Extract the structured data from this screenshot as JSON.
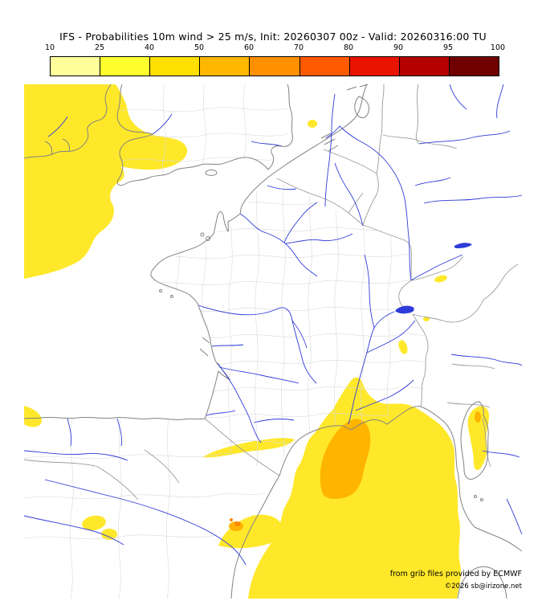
{
  "title": "IFS - Probabilities 10m wind > 25 m/s, Init: 20260307 00z - Valid: 20260316:00 TU",
  "colorbar": {
    "tick_labels": [
      "10",
      "25",
      "40",
      "50",
      "60",
      "70",
      "80",
      "90",
      "95",
      "100"
    ],
    "segment_colors": [
      "#ffff9c",
      "#ffff30",
      "#ffdf00",
      "#ffb800",
      "#ff9000",
      "#ff5a00",
      "#e81400",
      "#b40000",
      "#700000"
    ]
  },
  "map": {
    "colors": {
      "background": "#ffffff",
      "coastline": "#828282",
      "border": "#9c9c9c",
      "department": "#d9d9d9",
      "river": "#2e3bd8",
      "prob_10_25": "#ffe82a",
      "prob_25_40": "#ffb400",
      "prob_40_50": "#ff8800"
    }
  },
  "credits": {
    "source": "from grib files provided by ECMWF",
    "copyright": "©2026 sb@irizone.net"
  }
}
